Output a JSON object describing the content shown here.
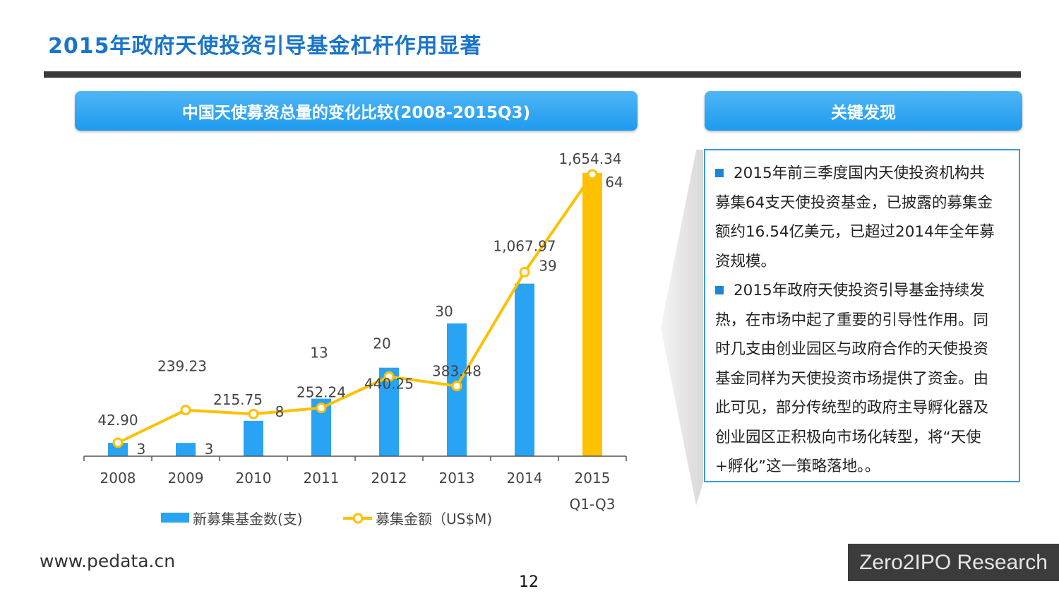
{
  "page": {
    "title": "2015年政府天使投资引导基金杠杆作用显著",
    "chart_header": "中国天使募资总量的变化比较(2008-2015Q3)",
    "findings_header": "关键发现",
    "findings": [
      "2015年前三季度国内天使投资机构共募集64支天使投资基金，已披露的募集金额约16.54亿美元，已超过2014年全年募资规模。",
      "2015年政府天使投资引导基金持续发热，在市场中起了重要的引导性作用。同时几支由创业园区与政府合作的天使投资基金同样为天使投资市场提供了资金。由此可见，部分传统型的政府主导孵化器及创业园区正积极向市场化转型，将“天使+孵化”这一策略落地。。"
    ],
    "findings_lines": [
      [
        "2015年前三季度国内天使投资机构共",
        "募集64支天使投资基金，已披露的募集金",
        "额约16.54亿美元，已超过2014年全年募",
        "资规模。"
      ],
      [
        "2015年政府天使投资引导基金持续发",
        "热，在市场中起了重要的引导性作用。同",
        "时几支由创业园区与政府合作的天使投资",
        "基金同样为天使投资市场提供了资金。由",
        "此可见，部分传统型的政府主导孵化器及",
        "创业园区正积极向市场化转型，将“天使",
        "+孵化”这一策略落地。。"
      ]
    ],
    "footer_url": "www.pedata.cn",
    "page_number": "12",
    "brand": "Zero2IPO Research"
  },
  "chart_data": {
    "type": "bar+line",
    "categories": [
      "2008",
      "2009",
      "2010",
      "2011",
      "2012",
      "2013",
      "2014",
      "2015\nQ1-Q3"
    ],
    "category_lines": [
      [
        "2008"
      ],
      [
        "2009"
      ],
      [
        "2010"
      ],
      [
        "2011"
      ],
      [
        "2012"
      ],
      [
        "2013"
      ],
      [
        "2014"
      ],
      [
        "2015",
        "Q1-Q3"
      ]
    ],
    "series": [
      {
        "name": "新募集基金数(支)",
        "type": "bar",
        "values": [
          3,
          3,
          8,
          13,
          20,
          30,
          39,
          64
        ],
        "labels": [
          "3",
          "3",
          "8",
          "13",
          "20",
          "30",
          "39",
          "64"
        ],
        "color": "#29a3f3",
        "highlight_color": "#ffc000"
      },
      {
        "name": "募集金额（US$M)",
        "type": "line",
        "values": [
          42.9,
          239.23,
          215.75,
          252.24,
          440.25,
          383.48,
          1067.97,
          1654.34
        ],
        "labels": [
          "42.90",
          "239.23",
          "215.75",
          "252.24",
          "440.25",
          "383.48",
          "1,067.97",
          "1,654.34"
        ],
        "color": "#ffc000"
      }
    ],
    "legend_position": "bottom",
    "grid": false
  }
}
